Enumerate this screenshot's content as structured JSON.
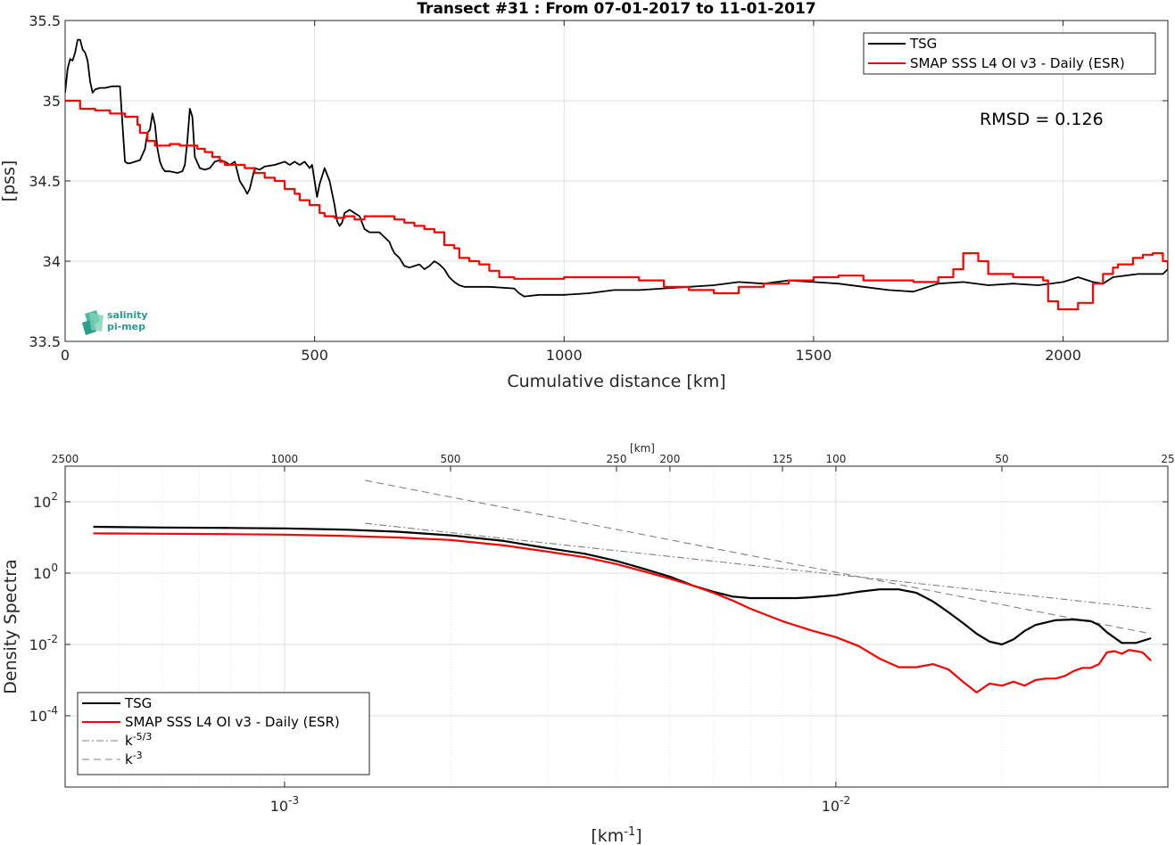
{
  "chart_data": [
    {
      "type": "line",
      "title": "Transect #31 : From 07-01-2017 to 11-01-2017",
      "xlabel": "Cumulative distance [km]",
      "ylabel": "[pss]",
      "xlim": [
        0,
        2210
      ],
      "ylim": [
        33.5,
        35.5
      ],
      "xticks": [
        "0",
        "500",
        "1000",
        "1500",
        "2000"
      ],
      "yticks": [
        "33.5",
        "34",
        "34.5",
        "35",
        "35.5"
      ],
      "grid": true,
      "legend": "top-right",
      "annotation": "RMSD = 0.126",
      "logo": "salinity pi-mep",
      "series": [
        {
          "name": "TSG",
          "color": "#000000",
          "x": [
            0,
            5,
            10,
            15,
            20,
            25,
            30,
            35,
            40,
            45,
            50,
            55,
            60,
            70,
            80,
            95,
            110,
            115,
            120,
            125,
            130,
            140,
            150,
            160,
            165,
            170,
            175,
            180,
            185,
            190,
            195,
            200,
            210,
            225,
            235,
            240,
            245,
            250,
            255,
            260,
            270,
            280,
            290,
            300,
            310,
            320,
            330,
            340,
            350,
            360,
            365,
            370,
            380,
            390,
            400,
            420,
            440,
            450,
            460,
            470,
            480,
            490,
            495,
            500,
            505,
            510,
            520,
            530,
            540,
            545,
            550,
            555,
            560,
            570,
            580,
            590,
            600,
            610,
            620,
            630,
            640,
            650,
            655,
            660,
            670,
            680,
            690,
            700,
            710,
            720,
            730,
            740,
            750,
            760,
            770,
            780,
            790,
            800,
            850,
            900,
            910,
            920,
            950,
            1000,
            1050,
            1100,
            1150,
            1200,
            1250,
            1300,
            1350,
            1400,
            1450,
            1500,
            1550,
            1600,
            1650,
            1700,
            1750,
            1800,
            1850,
            1900,
            1950,
            2000,
            2030,
            2060,
            2080,
            2100,
            2150,
            2200,
            2210
          ],
          "y": [
            35.05,
            35.2,
            35.26,
            35.25,
            35.3,
            35.38,
            35.38,
            35.32,
            35.3,
            35.25,
            35.12,
            35.05,
            35.07,
            35.08,
            35.08,
            35.09,
            35.09,
            34.85,
            34.62,
            34.61,
            34.61,
            34.62,
            34.63,
            34.7,
            34.8,
            34.82,
            34.92,
            34.85,
            34.7,
            34.62,
            34.58,
            34.56,
            34.56,
            34.55,
            34.56,
            34.6,
            34.75,
            34.95,
            34.9,
            34.65,
            34.58,
            34.57,
            34.58,
            34.62,
            34.63,
            34.62,
            34.6,
            34.62,
            34.5,
            34.45,
            34.42,
            34.45,
            34.58,
            34.57,
            34.59,
            34.6,
            34.62,
            34.6,
            34.62,
            34.6,
            34.62,
            34.58,
            34.6,
            34.5,
            34.4,
            34.48,
            34.58,
            34.5,
            34.35,
            34.25,
            34.22,
            34.24,
            34.3,
            34.32,
            34.3,
            34.28,
            34.2,
            34.18,
            34.18,
            34.18,
            34.15,
            34.12,
            34.08,
            34.05,
            34.02,
            33.97,
            33.96,
            33.97,
            33.98,
            33.95,
            33.97,
            34.0,
            33.98,
            33.95,
            33.9,
            33.87,
            33.85,
            33.84,
            33.84,
            33.83,
            33.8,
            33.78,
            33.79,
            33.79,
            33.8,
            33.82,
            33.82,
            33.83,
            33.84,
            33.85,
            33.87,
            33.86,
            33.88,
            33.87,
            33.86,
            33.84,
            33.82,
            33.81,
            33.86,
            33.87,
            33.85,
            33.86,
            33.85,
            33.87,
            33.9,
            33.87,
            33.86,
            33.9,
            33.92,
            33.92,
            33.95
          ]
        },
        {
          "name": "SMAP SSS L4 OI v3 - Daily (ESR)",
          "color": "#ff0000",
          "x": [
            0,
            30,
            60,
            90,
            120,
            145,
            150,
            165,
            180,
            195,
            210,
            230,
            250,
            265,
            280,
            295,
            310,
            320,
            340,
            360,
            380,
            400,
            420,
            440,
            460,
            470,
            490,
            510,
            520,
            540,
            560,
            580,
            600,
            620,
            640,
            660,
            680,
            700,
            720,
            740,
            760,
            780,
            790,
            810,
            830,
            850,
            870,
            900,
            950,
            1000,
            1050,
            1100,
            1150,
            1200,
            1250,
            1300,
            1350,
            1400,
            1450,
            1500,
            1550,
            1600,
            1650,
            1700,
            1750,
            1780,
            1800,
            1830,
            1850,
            1900,
            1960,
            1970,
            1990,
            2000,
            2030,
            2060,
            2080,
            2100,
            2110,
            2140,
            2160,
            2180,
            2200,
            2210
          ],
          "y": [
            35.0,
            34.95,
            34.94,
            34.92,
            34.9,
            34.85,
            34.8,
            34.75,
            34.72,
            34.72,
            34.73,
            34.72,
            34.72,
            34.7,
            34.68,
            34.65,
            34.62,
            34.6,
            34.6,
            34.58,
            34.55,
            34.52,
            34.5,
            34.45,
            34.42,
            34.38,
            34.35,
            34.3,
            34.28,
            34.27,
            34.28,
            34.26,
            34.28,
            34.28,
            34.28,
            34.26,
            34.24,
            34.22,
            34.2,
            34.18,
            34.1,
            34.08,
            34.02,
            34.0,
            33.98,
            33.94,
            33.9,
            33.89,
            33.89,
            33.9,
            33.9,
            33.9,
            33.88,
            33.84,
            33.82,
            33.8,
            33.84,
            33.86,
            33.88,
            33.9,
            33.91,
            33.88,
            33.88,
            33.87,
            33.9,
            33.95,
            34.05,
            34.0,
            33.92,
            33.9,
            33.88,
            33.75,
            33.7,
            33.7,
            33.74,
            33.86,
            33.92,
            33.96,
            33.98,
            34.02,
            34.04,
            34.05,
            34.0,
            33.95
          ]
        }
      ]
    },
    {
      "type": "line",
      "xlabel": "[km-1]",
      "ylabel": "Density Spectra",
      "top_axis_label": "[km]",
      "xscale": "log",
      "yscale": "log",
      "xlim": [
        0.0004,
        0.04
      ],
      "ylim": [
        1e-06,
        1000
      ],
      "xticks": [
        "10-3",
        "10-2"
      ],
      "yticks": [
        "10-4",
        "10-2",
        "100",
        "102"
      ],
      "top_ticks": [
        {
          "label": "2500",
          "km": 2500
        },
        {
          "label": "1000",
          "km": 1000
        },
        {
          "label": "500",
          "km": 500
        },
        {
          "label": "250",
          "km": 250
        },
        {
          "label": "200",
          "km": 200
        },
        {
          "label": "125",
          "km": 125
        },
        {
          "label": "100",
          "km": 100
        },
        {
          "label": "50",
          "km": 50
        },
        {
          "label": "25",
          "km": 25
        }
      ],
      "grid": true,
      "legend": "bottom-left",
      "series": [
        {
          "name": "TSG",
          "color": "#000000",
          "x": [
            0.00045,
            0.0006,
            0.0008,
            0.001,
            0.0013,
            0.0016,
            0.002,
            0.0025,
            0.003,
            0.0035,
            0.004,
            0.0045,
            0.005,
            0.0055,
            0.006,
            0.0065,
            0.007,
            0.0075,
            0.008,
            0.0085,
            0.009,
            0.01,
            0.011,
            0.012,
            0.013,
            0.014,
            0.015,
            0.016,
            0.017,
            0.018,
            0.019,
            0.02,
            0.021,
            0.022,
            0.023,
            0.025,
            0.027,
            0.029,
            0.03,
            0.031,
            0.033,
            0.035,
            0.0373
          ],
          "y": [
            20,
            19,
            18.5,
            18,
            16.5,
            14.5,
            11.5,
            8,
            5,
            3.5,
            2.2,
            1.3,
            0.8,
            0.45,
            0.3,
            0.22,
            0.2,
            0.2,
            0.2,
            0.2,
            0.21,
            0.24,
            0.3,
            0.35,
            0.35,
            0.28,
            0.16,
            0.08,
            0.04,
            0.02,
            0.012,
            0.01,
            0.014,
            0.024,
            0.035,
            0.048,
            0.05,
            0.045,
            0.035,
            0.022,
            0.011,
            0.011,
            0.015
          ]
        },
        {
          "name": "SMAP SSS L4 OI v3 - Daily (ESR)",
          "color": "#ff0000",
          "x": [
            0.00045,
            0.0006,
            0.0008,
            0.001,
            0.0013,
            0.0016,
            0.002,
            0.0025,
            0.003,
            0.0035,
            0.004,
            0.0045,
            0.005,
            0.0055,
            0.006,
            0.0065,
            0.007,
            0.008,
            0.009,
            0.01,
            0.011,
            0.012,
            0.013,
            0.014,
            0.015,
            0.016,
            0.017,
            0.018,
            0.019,
            0.02,
            0.021,
            0.022,
            0.023,
            0.024,
            0.025,
            0.026,
            0.027,
            0.028,
            0.029,
            0.03,
            0.031,
            0.032,
            0.033,
            0.034,
            0.035,
            0.036,
            0.0373
          ],
          "y": [
            13,
            12.7,
            12.4,
            12,
            11,
            10,
            8.5,
            6,
            4,
            2.8,
            1.8,
            1.1,
            0.7,
            0.45,
            0.28,
            0.17,
            0.1,
            0.045,
            0.025,
            0.016,
            0.009,
            0.004,
            0.0023,
            0.0023,
            0.0028,
            0.002,
            0.0009,
            0.00045,
            0.0008,
            0.0007,
            0.0009,
            0.0007,
            0.001,
            0.0011,
            0.0011,
            0.0013,
            0.0018,
            0.0022,
            0.0022,
            0.0028,
            0.006,
            0.0065,
            0.0055,
            0.007,
            0.0065,
            0.006,
            0.0035
          ]
        },
        {
          "name": "k-5/3",
          "color": "#808080",
          "dash": "dash-dot",
          "x": [
            0.0014,
            0.0373
          ],
          "y": [
            25,
            0.1
          ]
        },
        {
          "name": "k-3",
          "color": "#808080",
          "dash": "dashed",
          "x": [
            0.0014,
            0.0373
          ],
          "y": [
            400,
            0.02
          ]
        }
      ]
    }
  ]
}
